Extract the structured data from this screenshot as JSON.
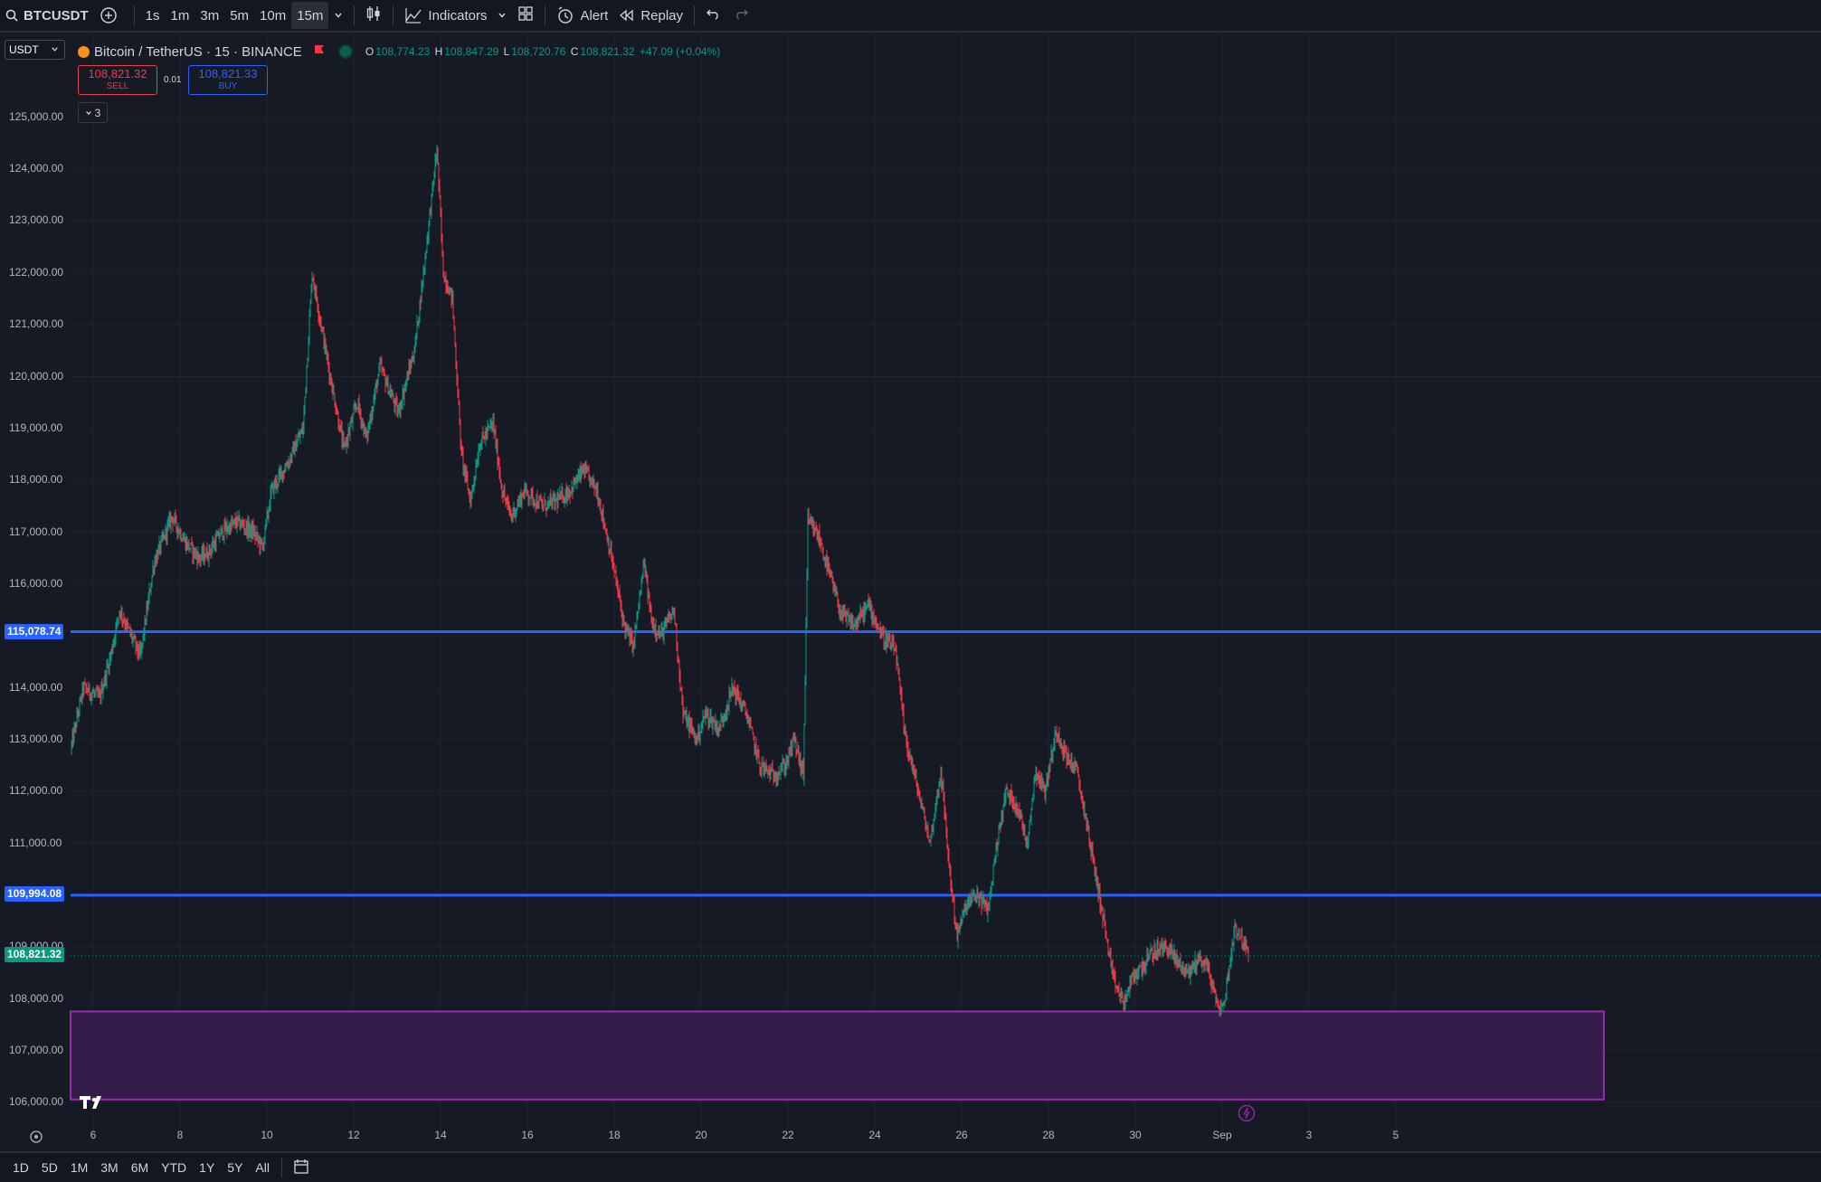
{
  "toolbar": {
    "symbol": "BTCUSDT",
    "intervals": [
      "1s",
      "1m",
      "3m",
      "5m",
      "10m",
      "15m"
    ],
    "active_interval": "15m",
    "indicators_label": "Indicators",
    "alert_label": "Alert",
    "replay_label": "Replay"
  },
  "legend": {
    "currency": "USDT",
    "title": "Bitcoin / TetherUS · 15 · BINANCE",
    "open_label": "O",
    "open": "108,774.23",
    "high_label": "H",
    "high": "108,847.29",
    "low_label": "L",
    "low": "108,720.76",
    "close_label": "C",
    "close": "108,821.32",
    "change": "+47.09 (+0.04%)"
  },
  "trade": {
    "sell_price": "108,821.32",
    "sell_label": "SELL",
    "spread": "0.01",
    "buy_price": "108,821.33",
    "buy_label": "BUY",
    "collapsed_count": "3"
  },
  "price_axis": [
    "125,000.00",
    "124,000.00",
    "123,000.00",
    "122,000.00",
    "121,000.00",
    "120,000.00",
    "119,000.00",
    "118,000.00",
    "117,000.00",
    "116,000.00",
    "114,000.00",
    "113,000.00",
    "112,000.00",
    "111,000.00",
    "109,000.00",
    "108,000.00",
    "107,000.00",
    "106,000.00"
  ],
  "time_axis": [
    "6",
    "8",
    "10",
    "12",
    "14",
    "16",
    "18",
    "20",
    "22",
    "24",
    "26",
    "28",
    "30",
    "Sep",
    "3",
    "5"
  ],
  "horizontal_lines": [
    {
      "label": "115,078.74",
      "price": 115078.74,
      "color": "#2962ff"
    },
    {
      "label": "109,994.08",
      "price": 109994.08,
      "color": "#2962ff"
    }
  ],
  "last_price": {
    "label": "108,821.32",
    "price": 108821.32,
    "color": "#089981"
  },
  "zone": {
    "top": 107750,
    "bottom": 106050,
    "color": "#9c27b0"
  },
  "bottom_ranges": [
    "1D",
    "5D",
    "1M",
    "3M",
    "6M",
    "YTD",
    "1Y",
    "5Y",
    "All"
  ],
  "colors": {
    "up": "#089981",
    "down": "#f23645",
    "background": "#161a25"
  }
}
